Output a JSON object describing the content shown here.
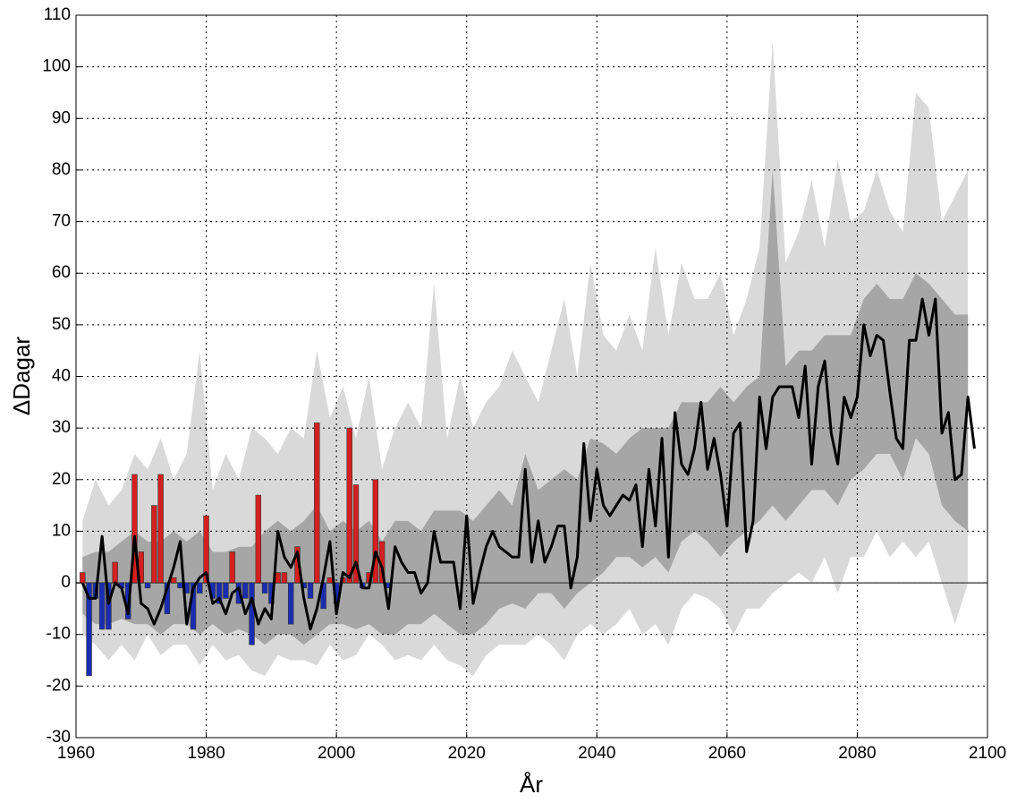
{
  "chart_data": {
    "type": "line",
    "xlabel": "År",
    "ylabel": "ΔDagar",
    "xlim": [
      1960,
      2100
    ],
    "ylim": [
      -30,
      110
    ],
    "xticks": [
      1960,
      1980,
      2000,
      2020,
      2040,
      2060,
      2080,
      2100
    ],
    "yticks": [
      -30,
      -20,
      -10,
      0,
      10,
      20,
      30,
      40,
      50,
      60,
      70,
      80,
      90,
      100,
      110
    ],
    "grid": true,
    "x": [
      1961,
      1962,
      1963,
      1964,
      1965,
      1966,
      1967,
      1968,
      1969,
      1970,
      1971,
      1972,
      1973,
      1974,
      1975,
      1976,
      1977,
      1978,
      1979,
      1980,
      1981,
      1982,
      1983,
      1984,
      1985,
      1986,
      1987,
      1988,
      1989,
      1990,
      1991,
      1992,
      1993,
      1994,
      1995,
      1996,
      1997,
      1998,
      1999,
      2000,
      2001,
      2002,
      2003,
      2004,
      2005,
      2006,
      2007,
      2008,
      2009,
      2010,
      2011,
      2012,
      2013,
      2014,
      2015,
      2016,
      2017,
      2018,
      2019,
      2020,
      2021,
      2022,
      2023,
      2024,
      2025,
      2026,
      2027,
      2028,
      2029,
      2030,
      2031,
      2032,
      2033,
      2034,
      2035,
      2036,
      2037,
      2038,
      2039,
      2040,
      2041,
      2042,
      2043,
      2044,
      2045,
      2046,
      2047,
      2048,
      2049,
      2050,
      2051,
      2052,
      2053,
      2054,
      2055,
      2056,
      2057,
      2058,
      2059,
      2060,
      2061,
      2062,
      2063,
      2064,
      2065,
      2066,
      2067,
      2068,
      2069,
      2070,
      2071,
      2072,
      2073,
      2074,
      2075,
      2076,
      2077,
      2078,
      2079,
      2080,
      2081,
      2082,
      2083,
      2084,
      2085,
      2086,
      2087,
      2088,
      2089,
      2090,
      2091,
      2092,
      2093,
      2094,
      2095,
      2096,
      2097,
      2098
    ],
    "series": [
      {
        "color": "#000000",
        "values": [
          0,
          -3,
          -3,
          9,
          -4,
          0,
          -1,
          -6,
          9,
          -4,
          -5,
          -8,
          -5,
          -1,
          3,
          8,
          -8,
          -1,
          1,
          2,
          -4,
          -3,
          -6,
          -2,
          -1,
          -6,
          -3,
          -8,
          -5,
          -7,
          10,
          5,
          3,
          6,
          -3,
          -9,
          -5,
          1,
          8,
          -6,
          2,
          1,
          4,
          -1,
          -1,
          6,
          3,
          -5,
          7,
          4,
          2,
          2,
          -2,
          0,
          10,
          4,
          4,
          4,
          -5,
          13,
          -4,
          2,
          7,
          10,
          7,
          6,
          5,
          5,
          22,
          4,
          12,
          4,
          7,
          11,
          11,
          -1,
          5,
          27,
          12,
          22,
          15,
          13,
          15,
          17,
          16,
          19,
          7,
          22,
          11,
          28,
          5,
          33,
          23,
          21,
          26,
          35,
          22,
          28,
          21,
          11,
          29,
          31,
          6,
          12,
          36,
          26,
          36,
          38,
          38,
          38,
          32,
          42,
          23,
          38,
          43,
          29,
          23,
          36,
          32,
          36,
          50,
          44,
          48,
          47,
          37,
          28,
          26,
          47,
          47,
          55,
          48,
          55,
          29,
          33,
          20,
          21,
          36,
          26
        ]
      }
    ],
    "bands": {
      "x": [
        1961,
        1963,
        1965,
        1967,
        1969,
        1971,
        1973,
        1975,
        1977,
        1979,
        1981,
        1983,
        1985,
        1987,
        1989,
        1991,
        1993,
        1995,
        1997,
        1999,
        2001,
        2003,
        2005,
        2007,
        2009,
        2011,
        2013,
        2015,
        2017,
        2019,
        2021,
        2023,
        2025,
        2027,
        2029,
        2031,
        2033,
        2035,
        2037,
        2039,
        2041,
        2043,
        2045,
        2047,
        2049,
        2051,
        2053,
        2055,
        2057,
        2059,
        2061,
        2063,
        2065,
        2067,
        2069,
        2071,
        2073,
        2075,
        2077,
        2079,
        2081,
        2083,
        2085,
        2087,
        2089,
        2091,
        2093,
        2095,
        2097
      ],
      "ranges": [
        {
          "color": "#d9d9d9",
          "upper": [
            12,
            20,
            15,
            18,
            25,
            22,
            28,
            20,
            25,
            45,
            18,
            25,
            20,
            30,
            28,
            25,
            30,
            28,
            45,
            32,
            38,
            28,
            40,
            22,
            30,
            35,
            30,
            58,
            28,
            40,
            30,
            35,
            38,
            45,
            40,
            35,
            45,
            55,
            40,
            62,
            48,
            45,
            52,
            45,
            65,
            48,
            62,
            55,
            55,
            60,
            48,
            55,
            65,
            105,
            62,
            68,
            78,
            65,
            82,
            70,
            72,
            80,
            72,
            68,
            95,
            92,
            70,
            75,
            80
          ],
          "lower": [
            -10,
            -12,
            -15,
            -12,
            -15,
            -10,
            -14,
            -12,
            -12,
            -16,
            -12,
            -15,
            -14,
            -17,
            -18,
            -14,
            -15,
            -15,
            -16,
            -12,
            -15,
            -14,
            -10,
            -12,
            -15,
            -14,
            -15,
            -12,
            -15,
            -16,
            -18,
            -14,
            -12,
            -12,
            -12,
            -10,
            -12,
            -15,
            -10,
            -8,
            -10,
            -8,
            -5,
            -10,
            -8,
            -12,
            -5,
            -2,
            -3,
            -5,
            -10,
            -5,
            -5,
            -2,
            0,
            2,
            0,
            5,
            -2,
            5,
            5,
            10,
            5,
            8,
            5,
            8,
            0,
            -8,
            0
          ]
        },
        {
          "color": "#a6a6a6",
          "upper": [
            5,
            6,
            6,
            8,
            10,
            8,
            8,
            10,
            8,
            10,
            6,
            6,
            7,
            7,
            10,
            12,
            10,
            12,
            15,
            10,
            12,
            10,
            12,
            8,
            12,
            12,
            10,
            14,
            14,
            14,
            12,
            15,
            18,
            15,
            25,
            18,
            20,
            22,
            20,
            28,
            27,
            25,
            28,
            30,
            30,
            30,
            35,
            35,
            35,
            38,
            35,
            38,
            40,
            80,
            42,
            45,
            45,
            48,
            48,
            48,
            55,
            58,
            55,
            55,
            60,
            58,
            55,
            52,
            52
          ],
          "lower": [
            -6,
            -8,
            -8,
            -7,
            -8,
            -8,
            -10,
            -8,
            -8,
            -10,
            -8,
            -10,
            -9,
            -10,
            -12,
            -10,
            -10,
            -12,
            -10,
            -8,
            -8,
            -9,
            -8,
            -10,
            -10,
            -8,
            -8,
            -6,
            -8,
            -10,
            -10,
            -8,
            -5,
            -4,
            -5,
            -2,
            -2,
            -5,
            -2,
            0,
            2,
            5,
            5,
            3,
            5,
            2,
            8,
            10,
            8,
            5,
            8,
            10,
            12,
            15,
            12,
            15,
            18,
            18,
            15,
            20,
            22,
            25,
            25,
            20,
            28,
            25,
            15,
            12,
            10
          ]
        }
      ]
    },
    "bars": {
      "x": [
        1961,
        1962,
        1963,
        1964,
        1965,
        1966,
        1967,
        1968,
        1969,
        1970,
        1971,
        1972,
        1973,
        1974,
        1975,
        1976,
        1977,
        1978,
        1979,
        1980,
        1981,
        1982,
        1983,
        1984,
        1985,
        1986,
        1987,
        1988,
        1989,
        1990,
        1991,
        1992,
        1993,
        1994,
        1995,
        1996,
        1997,
        1998,
        1999,
        2000,
        2001,
        2002,
        2003,
        2004,
        2005,
        2006,
        2007,
        2008
      ],
      "values": [
        2,
        -18,
        -3,
        -9,
        -9,
        4,
        -1,
        -7,
        21,
        6,
        -1,
        15,
        21,
        -6,
        1,
        -1,
        -2,
        -9,
        -2,
        13,
        -3,
        -4,
        -3,
        6,
        -4,
        -3,
        -12,
        17,
        -2,
        -4,
        2,
        2,
        -8,
        7,
        -1,
        -3,
        31,
        -5,
        1,
        -4,
        1,
        30,
        19,
        -1,
        2,
        20,
        8,
        -1
      ],
      "positive_color": "#d42020",
      "negative_color": "#1a2db0"
    }
  }
}
